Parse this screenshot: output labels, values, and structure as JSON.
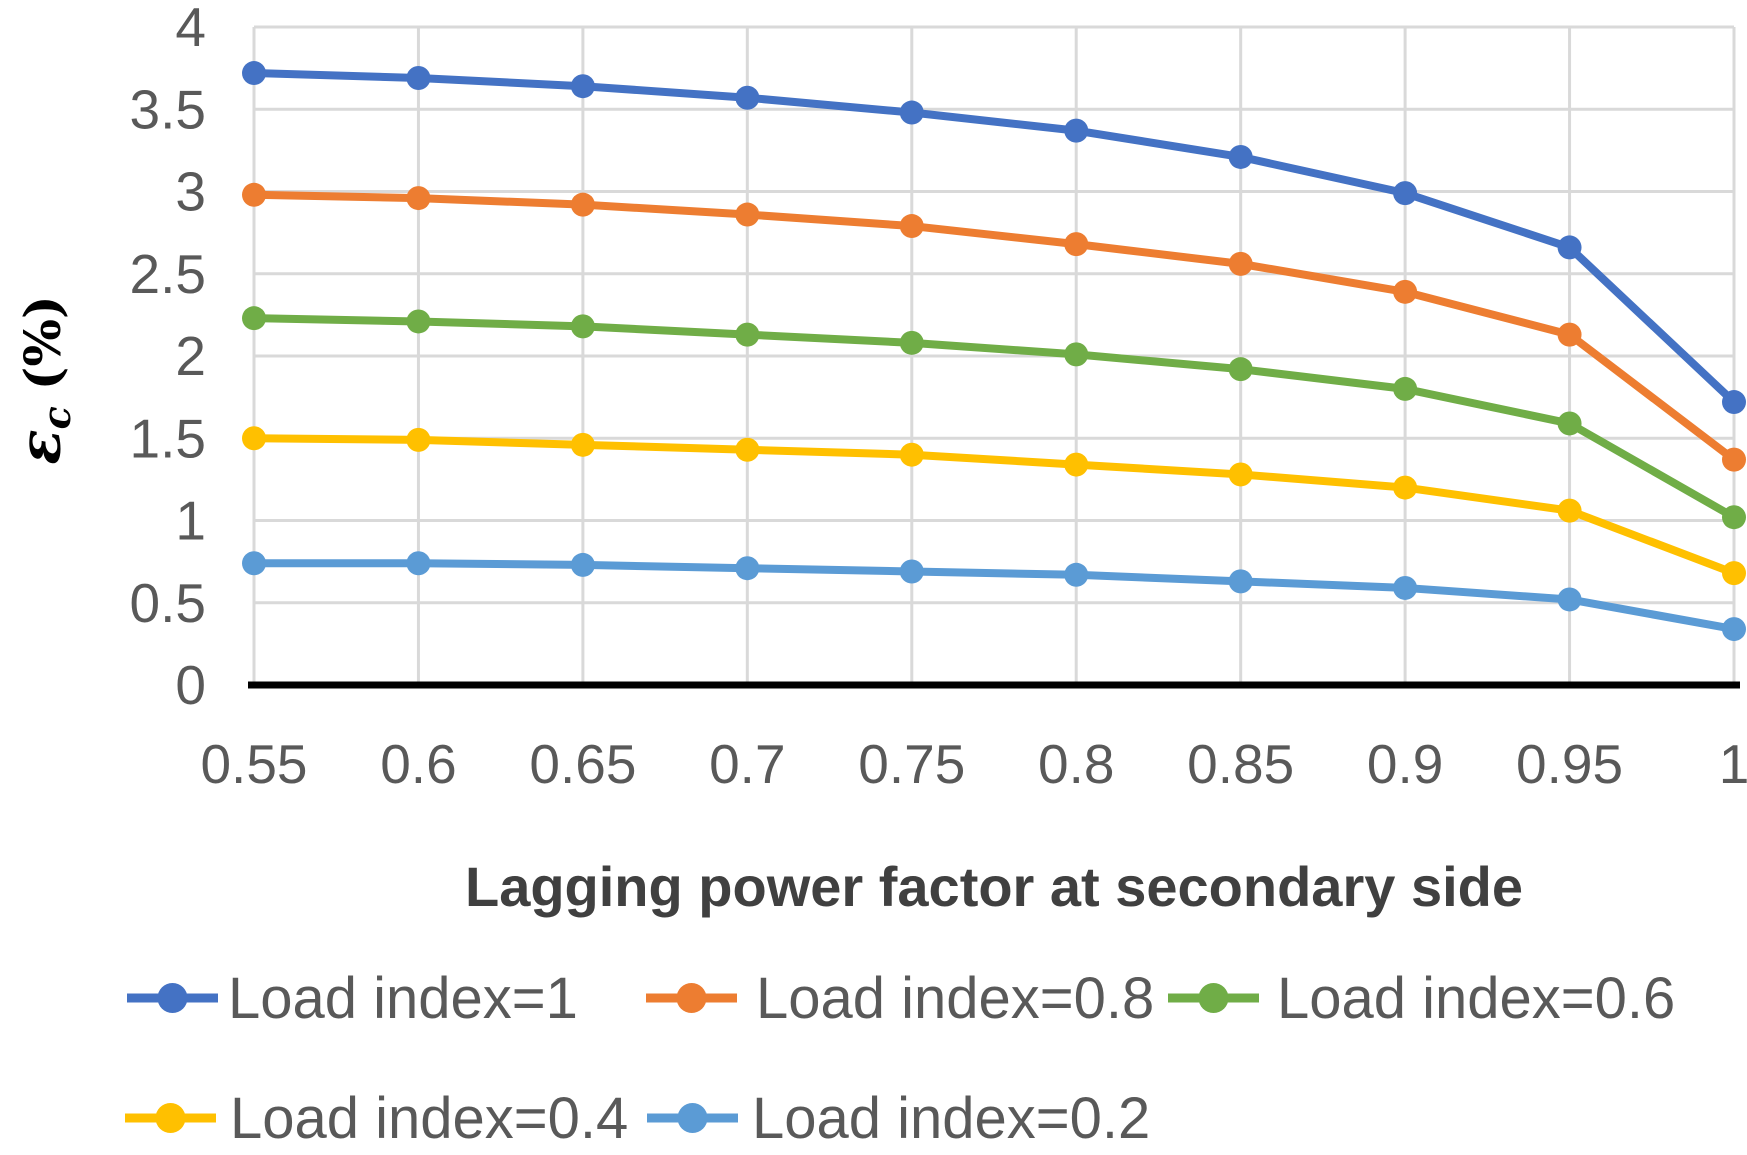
{
  "chart_data": {
    "type": "line",
    "title": "",
    "xlabel": "Lagging power factor at secondary side",
    "ylabel": "εc (%)",
    "ylabel_parts": {
      "symbol": "ε",
      "subscript": "c",
      "unit": "(%)"
    },
    "x": [
      0.55,
      0.6,
      0.65,
      0.7,
      0.75,
      0.8,
      0.85,
      0.9,
      0.95,
      1
    ],
    "x_tick_labels": [
      "0.55",
      "0.6",
      "0.65",
      "0.7",
      "0.75",
      "0.8",
      "0.85",
      "0.9",
      "0.95",
      "1"
    ],
    "y_ticks": [
      0,
      0.5,
      1,
      1.5,
      2,
      2.5,
      3,
      3.5,
      4
    ],
    "y_tick_labels": [
      "0",
      "0.5",
      "1",
      "1.5",
      "2",
      "2.5",
      "3",
      "3.5",
      "4"
    ],
    "xlim": [
      0.55,
      1.0
    ],
    "ylim": [
      0,
      4
    ],
    "grid": true,
    "legend_position": "bottom-left",
    "series": [
      {
        "name": "Load index=1",
        "color": "#4472C4",
        "values": [
          3.72,
          3.69,
          3.64,
          3.57,
          3.48,
          3.37,
          3.21,
          2.99,
          2.66,
          1.72
        ]
      },
      {
        "name": "Load index=0.8",
        "color": "#ED7D31",
        "values": [
          2.98,
          2.96,
          2.92,
          2.86,
          2.79,
          2.68,
          2.56,
          2.39,
          2.13,
          1.37
        ]
      },
      {
        "name": "Load index=0.6",
        "color": "#70AD47",
        "values": [
          2.23,
          2.21,
          2.18,
          2.13,
          2.08,
          2.01,
          1.92,
          1.8,
          1.59,
          1.02
        ]
      },
      {
        "name": "Load index=0.4",
        "color": "#FFC000",
        "values": [
          1.5,
          1.49,
          1.46,
          1.43,
          1.4,
          1.34,
          1.28,
          1.2,
          1.06,
          0.68
        ]
      },
      {
        "name": "Load index=0.2",
        "color": "#5B9BD5",
        "values": [
          0.74,
          0.74,
          0.73,
          0.71,
          0.69,
          0.67,
          0.63,
          0.59,
          0.52,
          0.34
        ]
      }
    ],
    "styles": {
      "background": "#FFFFFF",
      "grid_color": "#D9D9D9",
      "axis_color": "#000000",
      "tick_label_color": "#595959",
      "axis_title_color": "#404040",
      "y_axis_title_color": "#000000",
      "legend_text_color": "#595959"
    }
  }
}
